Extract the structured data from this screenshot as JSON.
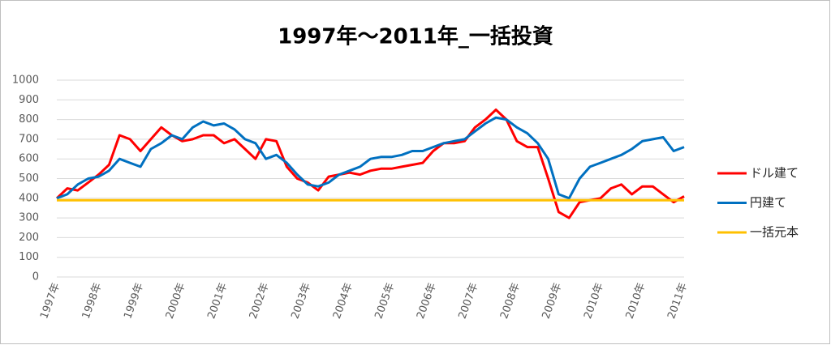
{
  "chart_data": {
    "type": "line",
    "title": "1997年～2011年_一括投資",
    "categories": [
      "1997年",
      null,
      null,
      null,
      "1998年",
      null,
      null,
      null,
      "1999年",
      null,
      null,
      null,
      "2000年",
      null,
      null,
      null,
      "2001年",
      null,
      null,
      null,
      "2002年",
      null,
      null,
      null,
      "2003年",
      null,
      null,
      null,
      "2004年",
      null,
      null,
      null,
      "2005年",
      null,
      null,
      null,
      "2006年",
      null,
      null,
      null,
      "2007年",
      null,
      null,
      null,
      "2008年",
      null,
      null,
      null,
      "2009年",
      null,
      null,
      null,
      "2010年",
      null,
      null,
      null,
      "2010年",
      null,
      null,
      null,
      "2011年"
    ],
    "series": [
      {
        "name": "ドル建て",
        "color": "#ff0000",
        "values": [
          400,
          450,
          440,
          480,
          520,
          570,
          720,
          700,
          640,
          700,
          760,
          720,
          690,
          700,
          720,
          720,
          680,
          700,
          650,
          600,
          700,
          690,
          560,
          500,
          480,
          440,
          510,
          520,
          530,
          520,
          540,
          550,
          550,
          560,
          570,
          580,
          640,
          680,
          680,
          690,
          760,
          800,
          850,
          800,
          690,
          660,
          660,
          500,
          330,
          300,
          380,
          390,
          400,
          450,
          470,
          420,
          460,
          460,
          420,
          380,
          410
        ]
      },
      {
        "name": "円建て",
        "color": "#0070c0",
        "values": [
          400,
          420,
          470,
          500,
          510,
          540,
          600,
          580,
          560,
          650,
          680,
          720,
          700,
          760,
          790,
          770,
          780,
          750,
          700,
          680,
          600,
          620,
          580,
          520,
          470,
          460,
          480,
          520,
          540,
          560,
          600,
          610,
          610,
          620,
          640,
          640,
          660,
          680,
          690,
          700,
          740,
          780,
          810,
          800,
          760,
          730,
          680,
          600,
          420,
          400,
          500,
          560,
          580,
          600,
          620,
          650,
          690,
          700,
          710,
          640,
          660
        ]
      },
      {
        "name": "一括元本",
        "color": "#ffc000",
        "values": [
          390,
          390,
          390,
          390,
          390,
          390,
          390,
          390,
          390,
          390,
          390,
          390,
          390,
          390,
          390,
          390,
          390,
          390,
          390,
          390,
          390,
          390,
          390,
          390,
          390,
          390,
          390,
          390,
          390,
          390,
          390,
          390,
          390,
          390,
          390,
          390,
          390,
          390,
          390,
          390,
          390,
          390,
          390,
          390,
          390,
          390,
          390,
          390,
          390,
          390,
          390,
          390,
          390,
          390,
          390,
          390,
          390,
          390,
          390,
          390,
          390
        ]
      }
    ],
    "ylim": [
      0,
      1000
    ],
    "yticks": [
      0,
      100,
      200,
      300,
      400,
      500,
      600,
      700,
      800,
      900,
      1000
    ],
    "grid": true,
    "legend": "right"
  }
}
